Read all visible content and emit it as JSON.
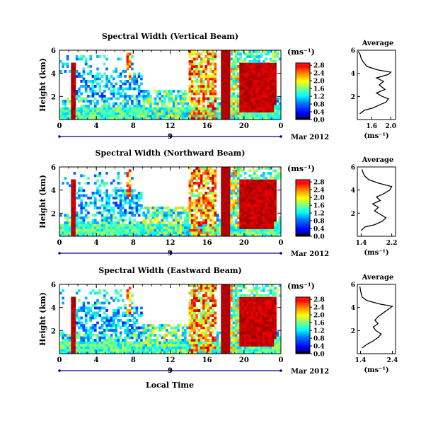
{
  "figure": {
    "x_axis_title": "Local Time",
    "date_label": "9",
    "month_label": "Mar 2012",
    "unit_label": "(ms⁻¹)",
    "average_title": "Average",
    "colormap": [
      "#000080",
      "#0000ff",
      "#0080ff",
      "#00ffff",
      "#80ff80",
      "#ffff00",
      "#ff8000",
      "#ff0000",
      "#800000"
    ],
    "height_axis_title": "Height (km)"
  },
  "chart_data": [
    {
      "type": "heatmap",
      "title": "Spectral Width (Vertical Beam)",
      "xlabel": "Local Time",
      "ylabel": "Height (km)",
      "xlim": [
        0,
        24
      ],
      "ylim": [
        0,
        6
      ],
      "xticks": [
        "0",
        "4",
        "8",
        "12",
        "16",
        "20",
        "0"
      ],
      "yticks": [
        "2",
        "4",
        "6"
      ],
      "colorbar": {
        "label": "(ms⁻¹)",
        "ticks": [
          "0.0",
          "0.4",
          "0.8",
          "1.2",
          "1.6",
          "2.0",
          "2.4",
          "2.8"
        ],
        "range": [
          0,
          2.8
        ]
      },
      "average_profile": {
        "title": "Average",
        "xlabel": "(ms⁻¹)",
        "xticks": [
          "1.6",
          "2.0"
        ],
        "xlim": [
          1.3,
          2.1
        ],
        "yticks": [
          "2",
          "4",
          "6"
        ],
        "height": [
          0.5,
          0.8,
          1.0,
          1.3,
          1.5,
          1.8,
          2.0,
          2.3,
          2.6,
          3.0,
          3.3,
          3.6,
          3.9,
          4.1,
          4.3,
          4.6,
          5.0,
          5.3,
          5.6,
          5.9
        ],
        "value": [
          1.35,
          1.45,
          1.62,
          1.78,
          1.9,
          1.95,
          1.82,
          1.7,
          1.88,
          1.76,
          1.85,
          1.7,
          1.95,
          2.0,
          1.72,
          1.5,
          1.42,
          1.38,
          1.36,
          1.32
        ]
      }
    },
    {
      "type": "heatmap",
      "title": "Spectral Width (Northward Beam)",
      "xlabel": "Local Time",
      "ylabel": "Height (km)",
      "xlim": [
        0,
        24
      ],
      "ylim": [
        0,
        6
      ],
      "xticks": [
        "0",
        "4",
        "8",
        "12",
        "16",
        "20",
        "0"
      ],
      "yticks": [
        "2",
        "4",
        "6"
      ],
      "colorbar": {
        "label": "(ms⁻¹)",
        "ticks": [
          "0.0",
          "0.4",
          "0.8",
          "1.2",
          "1.6",
          "2.0",
          "2.4",
          "2.8"
        ],
        "range": [
          0,
          2.8
        ]
      },
      "average_profile": {
        "title": "Average",
        "xlabel": "(ms⁻¹)",
        "xticks": [
          "1.4",
          "2.2"
        ],
        "xlim": [
          1.3,
          2.3
        ],
        "yticks": [
          "2",
          "4",
          "6"
        ],
        "height": [
          0.5,
          0.8,
          1.0,
          1.3,
          1.6,
          1.9,
          2.2,
          2.5,
          2.8,
          3.1,
          3.4,
          3.7,
          4.0,
          4.3,
          4.6,
          4.9,
          5.2,
          5.5,
          5.8
        ],
        "value": [
          1.4,
          1.5,
          1.75,
          1.95,
          2.05,
          1.9,
          1.75,
          1.85,
          1.7,
          1.9,
          1.8,
          2.0,
          2.15,
          2.2,
          1.85,
          1.6,
          1.5,
          1.45,
          1.42
        ]
      }
    },
    {
      "type": "heatmap",
      "title": "Spectral Width (Eastward Beam)",
      "xlabel": "Local Time",
      "ylabel": "Height (km)",
      "xlim": [
        0,
        24
      ],
      "ylim": [
        0,
        6
      ],
      "xticks": [
        "0",
        "4",
        "8",
        "12",
        "16",
        "20",
        "0"
      ],
      "yticks": [
        "2",
        "4",
        "6"
      ],
      "colorbar": {
        "label": "(ms⁻¹)",
        "ticks": [
          "0.0",
          "0.4",
          "0.8",
          "1.2",
          "1.6",
          "2.0",
          "2.4",
          "2.8"
        ],
        "range": [
          0,
          2.8
        ]
      },
      "average_profile": {
        "title": "Average",
        "xlabel": "(ms⁻¹)",
        "xticks": [
          "1.4",
          "2.4"
        ],
        "xlim": [
          1.3,
          2.5
        ],
        "yticks": [
          "2",
          "4",
          "6"
        ],
        "height": [
          0.5,
          0.8,
          1.1,
          1.4,
          1.7,
          2.0,
          2.3,
          2.6,
          2.9,
          3.2,
          3.5,
          3.8,
          4.1,
          4.3,
          4.6,
          4.9,
          5.2,
          5.5,
          5.8
        ],
        "value": [
          1.45,
          1.6,
          1.8,
          1.95,
          2.05,
          1.88,
          1.8,
          1.95,
          1.85,
          1.95,
          2.1,
          2.25,
          2.4,
          2.0,
          1.6,
          1.45,
          1.42,
          1.4,
          1.38
        ]
      }
    }
  ]
}
